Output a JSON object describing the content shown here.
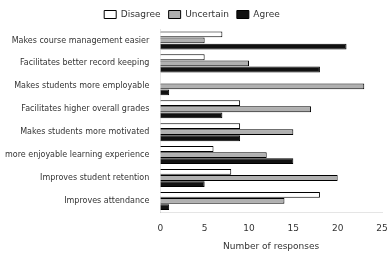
{
  "chart_data": {
    "type": "bar",
    "orientation": "horizontal",
    "xlabel": "Number of responses",
    "categories": [
      "Improves attendance",
      "Improves student retention",
      "more enjoyable learning experience",
      "Makes students more motivated",
      "Facilitates higher overall grades",
      "Makes students more employable",
      "Facilitates better record keeping",
      "Makes course management easier"
    ],
    "series": [
      {
        "name": "Disagree",
        "color": "#ffffff",
        "values": [
          18,
          8,
          6,
          9,
          9,
          0,
          5,
          7
        ]
      },
      {
        "name": "Uncertain",
        "color": "#b0b0b0",
        "values": [
          14,
          20,
          12,
          15,
          17,
          23,
          10,
          5
        ]
      },
      {
        "name": "Agree",
        "color": "#111111",
        "values": [
          1,
          5,
          15,
          9,
          7,
          1,
          18,
          21
        ]
      }
    ],
    "xlim": [
      0,
      25
    ],
    "xticks": [
      0,
      5,
      10,
      15,
      20,
      25
    ],
    "grid": false,
    "legend": "top"
  }
}
